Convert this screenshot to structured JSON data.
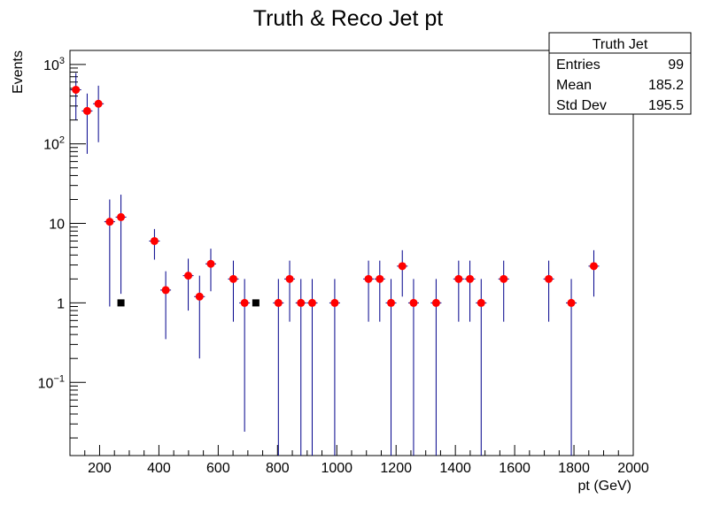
{
  "chart_data": {
    "type": "scatter",
    "title": "Truth & Reco Jet pt",
    "xlabel": "pt (GeV)",
    "ylabel": "Events",
    "xlim": [
      100,
      2000
    ],
    "ylim": [
      0.012,
      1500
    ],
    "yscale": "log",
    "grid": false,
    "x_ticks": [
      200,
      400,
      600,
      800,
      1000,
      1200,
      1400,
      1600,
      1800,
      2000
    ],
    "y_ticks": [
      {
        "value": 0.1,
        "base": "10",
        "exp": "−1"
      },
      {
        "value": 1,
        "label": "1"
      },
      {
        "value": 10,
        "label": "10"
      },
      {
        "value": 100,
        "base": "10",
        "exp": "2"
      },
      {
        "value": 1000,
        "base": "10",
        "exp": "3"
      }
    ],
    "series": [
      {
        "marker": "circle",
        "color": "#ff0000",
        "error_color": "#00008b",
        "points": [
          {
            "x": 120,
            "y": 480,
            "lo": 200,
            "hi": 780
          },
          {
            "x": 158,
            "y": 260,
            "lo": 75,
            "hi": 430
          },
          {
            "x": 196,
            "y": 320,
            "lo": 105,
            "hi": 540
          },
          {
            "x": 234,
            "y": 10.5,
            "lo": 0.9,
            "hi": 20
          },
          {
            "x": 272,
            "y": 12,
            "lo": 1.3,
            "hi": 23
          },
          {
            "x": 385,
            "y": 6,
            "lo": 3.5,
            "hi": 8.5
          },
          {
            "x": 423,
            "y": 1.45,
            "lo": 0.35,
            "hi": 2.5
          },
          {
            "x": 499,
            "y": 2.2,
            "lo": 0.8,
            "hi": 3.6
          },
          {
            "x": 537,
            "y": 1.2,
            "lo": 0.2,
            "hi": 2.2
          },
          {
            "x": 575,
            "y": 3.1,
            "lo": 1.4,
            "hi": 4.8
          },
          {
            "x": 651,
            "y": 2,
            "lo": 0.58,
            "hi": 3.4
          },
          {
            "x": 689,
            "y": 1,
            "lo": 0.024,
            "hi": 2
          },
          {
            "x": 803,
            "y": 1,
            "lo": 0.001,
            "hi": 2
          },
          {
            "x": 841,
            "y": 2,
            "lo": 0.58,
            "hi": 3.4
          },
          {
            "x": 879,
            "y": 1,
            "lo": 0.001,
            "hi": 2
          },
          {
            "x": 917,
            "y": 1,
            "lo": 0.001,
            "hi": 2
          },
          {
            "x": 993,
            "y": 1,
            "lo": 0.001,
            "hi": 2
          },
          {
            "x": 1107,
            "y": 2,
            "lo": 0.58,
            "hi": 3.4
          },
          {
            "x": 1145,
            "y": 2,
            "lo": 0.58,
            "hi": 3.4
          },
          {
            "x": 1183,
            "y": 1,
            "lo": 0.001,
            "hi": 2
          },
          {
            "x": 1221,
            "y": 2.9,
            "lo": 1.2,
            "hi": 4.6
          },
          {
            "x": 1259,
            "y": 1,
            "lo": 0.001,
            "hi": 2
          },
          {
            "x": 1335,
            "y": 1,
            "lo": 0.001,
            "hi": 2
          },
          {
            "x": 1411,
            "y": 2,
            "lo": 0.58,
            "hi": 3.4
          },
          {
            "x": 1449,
            "y": 2,
            "lo": 0.58,
            "hi": 3.4
          },
          {
            "x": 1487,
            "y": 1,
            "lo": 0.001,
            "hi": 2
          },
          {
            "x": 1563,
            "y": 2,
            "lo": 0.58,
            "hi": 3.4
          },
          {
            "x": 1715,
            "y": 2,
            "lo": 0.58,
            "hi": 3.4
          },
          {
            "x": 1791,
            "y": 1,
            "lo": 0.001,
            "hi": 2
          },
          {
            "x": 1867,
            "y": 2.9,
            "lo": 1.2,
            "hi": 4.6
          }
        ]
      },
      {
        "marker": "square",
        "color": "#000000",
        "points": [
          {
            "x": 272,
            "y": 1
          },
          {
            "x": 727,
            "y": 1
          }
        ]
      }
    ],
    "stats_box": {
      "title": "Truth Jet",
      "rows": [
        {
          "label": "Entries",
          "value": "99"
        },
        {
          "label": "Mean",
          "value": "185.2"
        },
        {
          "label": "Std Dev",
          "value": "195.5"
        }
      ]
    }
  }
}
